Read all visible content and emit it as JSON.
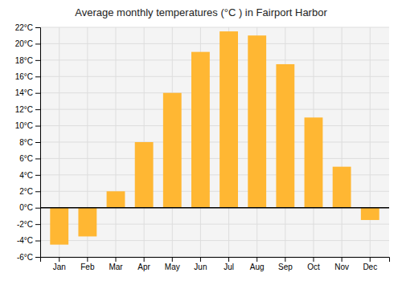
{
  "chart_data": {
    "type": "bar",
    "title": "Average monthly temperatures (°C ) in Fairport Harbor",
    "categories": [
      "Jan",
      "Feb",
      "Mar",
      "Apr",
      "May",
      "Jun",
      "Jul",
      "Aug",
      "Sep",
      "Oct",
      "Nov",
      "Dec"
    ],
    "values": [
      -4.5,
      -3.5,
      2.0,
      8.0,
      14.0,
      19.0,
      21.5,
      21.0,
      17.5,
      11.0,
      5.0,
      -1.5
    ],
    "color": "#FFB733",
    "ylim": [
      -6,
      22
    ],
    "yticks": [
      {
        "value": -6,
        "label": "-6°C"
      },
      {
        "value": -4,
        "label": "-4°C"
      },
      {
        "value": -2,
        "label": "-2°C"
      },
      {
        "value": 0,
        "label": "0°C"
      },
      {
        "value": 2,
        "label": "2°C"
      },
      {
        "value": 4,
        "label": "4°C"
      },
      {
        "value": 6,
        "label": "6°C"
      },
      {
        "value": 8,
        "label": "8°C"
      },
      {
        "value": 10,
        "label": "10°C"
      },
      {
        "value": 12,
        "label": "12°C"
      },
      {
        "value": 14,
        "label": "14°C"
      },
      {
        "value": 16,
        "label": "16°C"
      },
      {
        "value": 18,
        "label": "18°C"
      },
      {
        "value": 20,
        "label": "20°C"
      },
      {
        "value": 22,
        "label": "22°C"
      }
    ],
    "grid": true
  }
}
